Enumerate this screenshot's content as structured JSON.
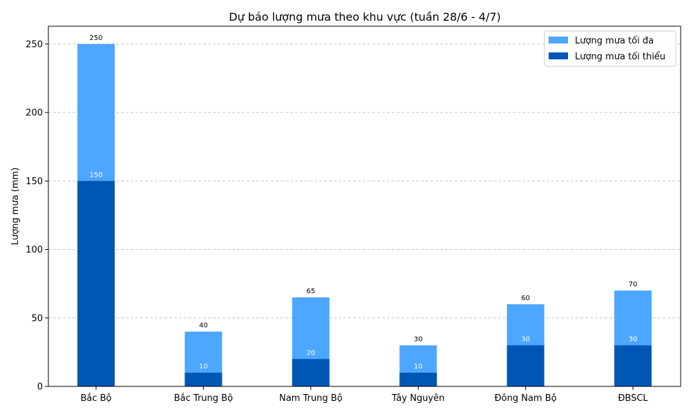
{
  "chart_data": {
    "type": "bar",
    "stacked_overlay": true,
    "title": "Dự báo lượng mưa theo khu vực (tuần 28/6 - 4/7)",
    "xlabel": "",
    "ylabel": "Lượng mưa (mm)",
    "categories": [
      "Bắc Bộ",
      "Bắc Trung Bộ",
      "Nam Trung Bộ",
      "Tây Nguyên",
      "Đông Nam Bộ",
      "ĐBSCL"
    ],
    "series": [
      {
        "name": "Lượng mưa tối đa",
        "values": [
          250,
          40,
          65,
          30,
          60,
          70
        ],
        "color": "#4da6ff"
      },
      {
        "name": "Lượng mưa tối thiểu",
        "values": [
          150,
          10,
          20,
          10,
          30,
          30
        ],
        "color": "#0057b3"
      }
    ],
    "ylim": [
      0,
      263
    ],
    "yticks": [
      0,
      50,
      100,
      150,
      200,
      250
    ],
    "grid": "y-dashed",
    "legend_position": "top-right"
  }
}
